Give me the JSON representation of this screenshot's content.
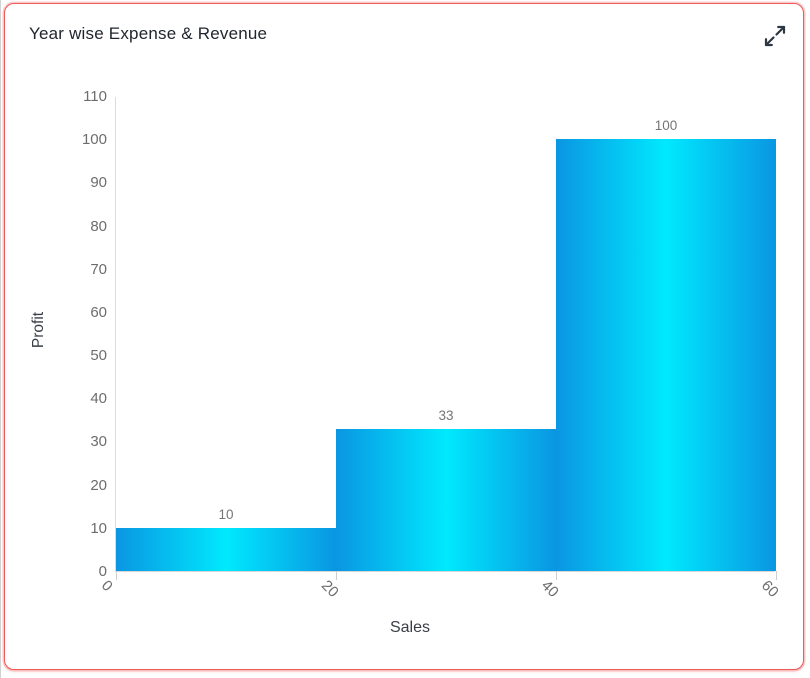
{
  "card": {
    "title": "Year wise Expense & Revenue",
    "border_color": "#ee5b5b",
    "expand_icon": "expand-diagonal-arrows",
    "icon_color": "#2d3844"
  },
  "chart_data": {
    "type": "bar",
    "subtype": "contiguous-range-bars",
    "title": "Year wise Expense & Revenue",
    "xlabel": "Sales",
    "ylabel": "Profit",
    "bins": [
      {
        "x0": 0,
        "x1": 20,
        "value": 10
      },
      {
        "x0": 20,
        "x1": 40,
        "value": 33
      },
      {
        "x0": 40,
        "x1": 60,
        "value": 100
      }
    ],
    "data_labels": [
      "10",
      "33",
      "100"
    ],
    "x_ticks": [
      "0",
      "20",
      "40",
      "60"
    ],
    "x_tick_values": [
      0,
      20,
      40,
      60
    ],
    "y_ticks": [
      "0",
      "10",
      "20",
      "30",
      "40",
      "50",
      "60",
      "70",
      "80",
      "90",
      "100",
      "110"
    ],
    "y_tick_values": [
      0,
      10,
      20,
      30,
      40,
      50,
      60,
      70,
      80,
      90,
      100,
      110
    ],
    "xlim": [
      0,
      60
    ],
    "ylim": [
      0,
      110
    ],
    "grid": "off",
    "legend": "none",
    "x_tick_rotation_deg": 45,
    "bar_gradient": {
      "edge_color": "#0a96e2",
      "center_color": "#00e9fe"
    },
    "axis_line_color": "#d9d9d9",
    "tick_label_color": "#6d6d6d",
    "data_label_color": "#757575",
    "axis_title_color": "#393e46"
  }
}
